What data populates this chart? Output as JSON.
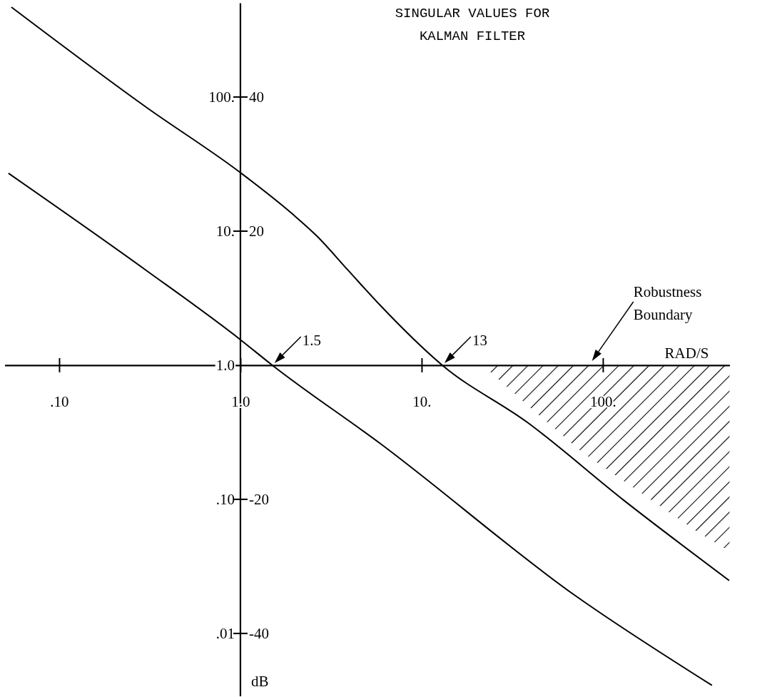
{
  "chart_data": {
    "type": "line",
    "title": "SINGULAR VALUES FOR\nKALMAN FILTER",
    "xlabel": "RAD/S",
    "y2label": "dB",
    "log": "xy",
    "xlim": [
      0.05,
      500
    ],
    "ylim": [
      0.0034,
      500
    ],
    "y2lim": [
      -49.37,
      53.98
    ],
    "xticks": [
      {
        "value": 0.1,
        "label": ".10"
      },
      {
        "value": 1,
        "label": "1.0"
      },
      {
        "value": 10,
        "label": "10."
      },
      {
        "value": 100,
        "label": "100."
      }
    ],
    "yticks": [
      {
        "value": 100,
        "label": "100."
      },
      {
        "value": 10,
        "label": "10."
      },
      {
        "value": 1,
        "label": "1.0"
      },
      {
        "value": 0.1,
        "label": ".10"
      },
      {
        "value": 0.01,
        "label": ".01"
      }
    ],
    "y2ticks": [
      40,
      20,
      -20,
      -40
    ],
    "series": [
      {
        "color": "#000000",
        "x": [
          0.0545,
          0.302,
          1,
          1.94,
          2.64,
          3.93,
          5.86,
          13,
          38.3,
          131,
          498
        ],
        "values": [
          468,
          84,
          27.3,
          13.4,
          9.2,
          5.1,
          2.83,
          1,
          0.375,
          0.098,
          0.0248
        ]
      },
      {
        "color": "#000000",
        "x": [
          0.0525,
          0.302,
          1,
          1.5,
          5.86,
          71,
          400
        ],
        "values": [
          27,
          5.1,
          1.55,
          1,
          0.263,
          0.019,
          0.0041
        ]
      },
      {
        "type": "area",
        "name": "Robustness Boundary",
        "color": "#000000",
        "x": [
          21.8,
          38,
          77.6,
          334,
          500,
          500
        ],
        "values": [
          1,
          0.51,
          0.222,
          0.057,
          0.041,
          1
        ]
      }
    ],
    "annotations": [
      {
        "text": "1.5",
        "x": 1.5,
        "y": 1
      },
      {
        "text": "13",
        "x": 13,
        "y": 1
      }
    ]
  }
}
